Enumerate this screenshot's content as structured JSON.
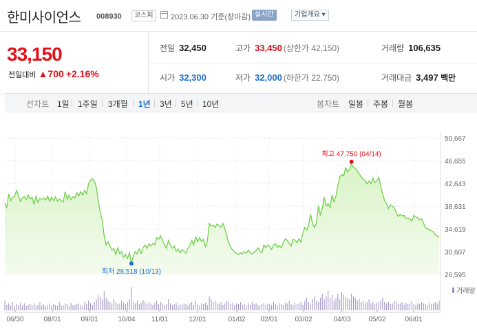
{
  "header": {
    "name": "한미사이언스",
    "code": "008930",
    "market": "코스피",
    "date": "2023.06.30 기준(장마감)",
    "realtime": "실시간",
    "info": "기업개요"
  },
  "price": {
    "current": "33,150",
    "change_label": "전일대비",
    "change_arrow": "▲",
    "change_value": "700",
    "change_pct": "+2.16%"
  },
  "stats": {
    "prev_label": "전일",
    "prev": "32,450",
    "high_label": "고가",
    "high": "33,450",
    "upper_limit": "(상한가 42,150)",
    "volume_label": "거래량",
    "volume": "106,635",
    "open_label": "시가",
    "open": "32,300",
    "low_label": "저가",
    "low": "32,000",
    "lower_limit": "(하한가 22,750)",
    "amount_label": "거래대금",
    "amount": "3,497",
    "amount_unit": "백만"
  },
  "toolbar": {
    "line_chart": "선차트",
    "ranges": [
      "1일",
      "1주일",
      "3개월",
      "1년",
      "3년",
      "5년",
      "10년"
    ],
    "selected_range": "1년",
    "candle_chart": "봉차트",
    "candles": [
      "일봉",
      "주봉",
      "월봉"
    ]
  },
  "chart_data": {
    "type": "area",
    "y_ticks": [
      "50,667",
      "46,655",
      "42,643",
      "38,631",
      "34,619",
      "30,607",
      "26,595"
    ],
    "x_ticks": [
      "06/30",
      "08/01",
      "09/01",
      "10/04",
      "11/01",
      "12/01",
      "01/02",
      "02/01",
      "03/02",
      "04/03",
      "05/02",
      "06/01"
    ],
    "ylim": [
      26595,
      50667
    ],
    "max": {
      "label": "최고",
      "value": "47,750",
      "date": "(04/14)"
    },
    "min": {
      "label": "최저",
      "value": "28,518",
      "date": "(10/13)"
    },
    "volume_label": "거래량",
    "colors": {
      "line": "#6fcf4a",
      "fill_top": "#d9f3c7",
      "fill_bottom": "#f4fbef",
      "high": "#e2101a",
      "low": "#1f6fd1",
      "volume": "#9b8fc0"
    },
    "series": [
      {
        "values": [
          39200,
          38400,
          40800,
          39600,
          40200,
          40300,
          41400,
          40500,
          39500,
          40100,
          40300,
          39800,
          40600,
          39900,
          40200,
          39000,
          40400,
          39300,
          40000,
          39800,
          40100,
          39700,
          40400,
          39500,
          40200,
          39600,
          40300,
          39500,
          39900,
          39600,
          39400,
          41200,
          39800,
          40600,
          39800,
          40300,
          40100,
          41000,
          40400,
          41200,
          40600,
          41400,
          40800,
          42600,
          43200,
          43500,
          43000,
          42000,
          39500,
          37600,
          36200,
          33400,
          31800,
          32400,
          31600,
          30900,
          31200,
          30100,
          31300,
          30200,
          30600,
          29600,
          30100,
          29400,
          30400,
          28518,
          29900,
          30600,
          30200,
          31100,
          30300,
          31300,
          31800,
          31200,
          32000,
          31600,
          32100,
          31800,
          33100,
          32800,
          33400,
          32600,
          31800,
          31200,
          32600,
          31800,
          31200,
          31600,
          30700,
          31100,
          30400,
          31000,
          30700,
          30300,
          31200,
          31700,
          32600,
          31800,
          33200,
          32400,
          33100,
          32400,
          32800,
          31500,
          32500,
          35600,
          35100,
          35300,
          34900,
          35500,
          35200,
          34900,
          35600,
          34600,
          33400,
          32100,
          31400,
          30900,
          30500,
          30300,
          30100,
          30400,
          30200,
          30600,
          30300,
          30900,
          30400,
          30200,
          30500,
          30800,
          31300,
          30700,
          30400,
          31800,
          31300,
          31800,
          31500,
          31000,
          31800,
          32000,
          31400,
          31700,
          31300,
          32200,
          32900,
          32600,
          32100,
          31600,
          32800,
          32600,
          32200,
          32900,
          32300,
          33800,
          34900,
          34400,
          35300,
          37200,
          35600,
          34900,
          35700,
          38700,
          37100,
          38200,
          40200,
          38700,
          39100,
          38400,
          40600,
          39400,
          40400,
          42300,
          43800,
          44200,
          44000,
          45400,
          44700,
          45100,
          46100,
          45500,
          45300,
          44800,
          44300,
          43800,
          43400,
          43200,
          42600,
          43100,
          42600,
          43600,
          42800,
          43100,
          43700,
          42200,
          40800,
          39600,
          39100,
          38200,
          38900,
          38600,
          38400,
          37500,
          36800,
          37200,
          36900,
          37000,
          36500,
          36500,
          36400,
          36000,
          37000,
          36700,
          36600,
          36200,
          36400,
          35600,
          34800,
          34700,
          34400,
          34300,
          34100,
          33600,
          33400,
          33150
        ]
      }
    ],
    "volume": [
      14,
      8,
      10,
      7,
      12,
      6,
      9,
      8,
      11,
      7,
      10,
      6,
      8,
      9,
      7,
      10,
      6,
      8,
      12,
      7,
      9,
      6,
      8,
      10,
      7,
      9,
      8,
      6,
      12,
      8,
      7,
      10,
      9,
      6,
      11,
      8,
      7,
      9,
      10,
      8,
      6,
      12,
      9,
      14,
      10,
      8,
      12,
      16,
      22,
      20,
      15,
      28,
      18,
      14,
      12,
      10,
      16,
      12,
      9,
      10,
      14,
      11,
      9,
      12,
      16,
      34,
      12,
      10,
      14,
      9,
      11,
      15,
      12,
      9,
      12,
      10,
      8,
      11,
      14,
      9,
      12,
      10,
      8,
      9,
      16,
      10,
      8,
      9,
      11,
      7,
      9,
      8,
      10,
      9,
      7,
      10,
      12,
      8,
      14,
      9,
      7,
      10,
      9,
      11,
      8,
      20,
      16,
      12,
      14,
      10,
      9,
      12,
      8,
      10,
      14,
      12,
      9,
      11,
      8,
      10,
      9,
      12,
      8,
      9,
      7,
      10,
      8,
      12,
      9,
      10,
      8,
      7,
      9,
      11,
      8,
      10,
      9,
      8,
      12,
      9,
      7,
      10,
      9,
      8,
      11,
      10,
      14,
      9,
      8,
      11,
      9,
      10,
      12,
      8,
      14,
      18,
      12,
      10,
      16,
      20,
      14,
      12,
      18,
      24,
      16,
      20,
      28,
      18,
      22,
      14,
      18,
      24,
      16,
      26,
      22,
      20,
      18,
      16,
      24,
      20,
      18,
      14,
      16,
      12,
      14,
      10,
      12,
      16,
      10,
      12,
      9,
      11,
      12,
      14,
      18,
      12,
      10,
      12,
      9,
      10,
      14,
      12,
      9,
      10,
      12,
      8,
      11,
      9,
      10,
      13,
      9,
      8,
      10,
      9,
      12,
      10,
      9,
      8,
      11,
      9,
      10,
      12,
      9,
      14
    ]
  }
}
